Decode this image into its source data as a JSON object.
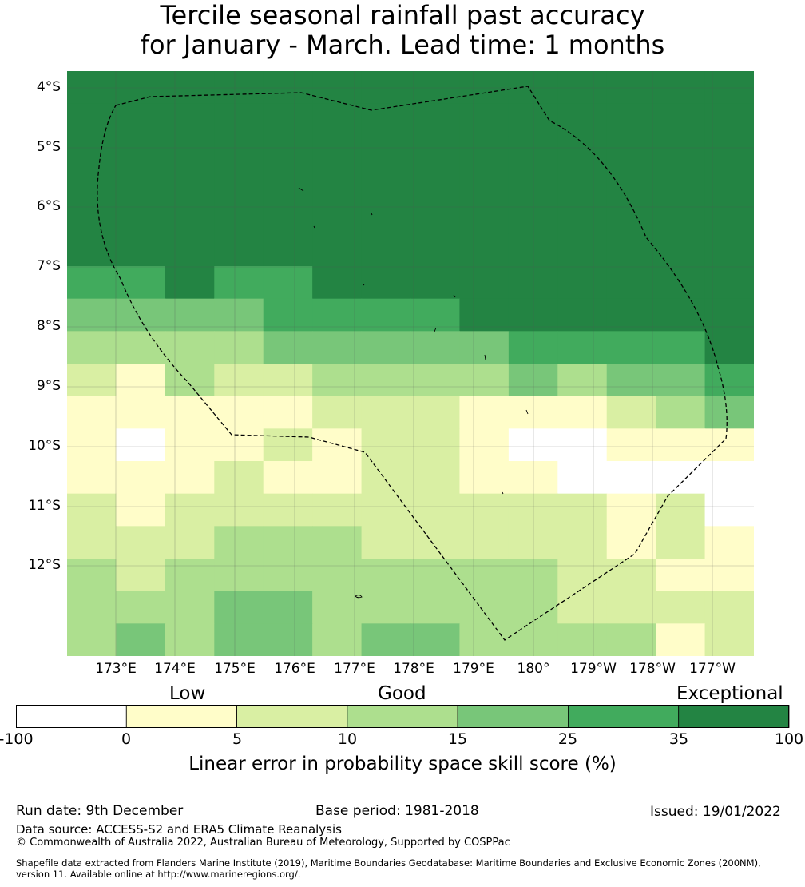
{
  "title": {
    "line1": "Tercile seasonal rainfall past accuracy",
    "line2": "for January - March. Lead time: 1 months"
  },
  "map": {
    "lat_labels": [
      "4°S",
      "5°S",
      "6°S",
      "7°S",
      "8°S",
      "9°S",
      "10°S",
      "11°S",
      "12°S"
    ],
    "lon_labels": [
      "173°E",
      "174°E",
      "175°E",
      "176°E",
      "177°E",
      "178°E",
      "179°E",
      "180°",
      "179°W",
      "178°W",
      "177°W"
    ],
    "grid": [
      [
        6,
        6,
        6,
        6,
        6,
        6,
        6,
        6,
        6,
        6,
        6,
        6,
        6,
        6
      ],
      [
        6,
        6,
        6,
        6,
        6,
        6,
        6,
        6,
        6,
        6,
        6,
        6,
        6,
        6
      ],
      [
        6,
        6,
        6,
        6,
        6,
        6,
        6,
        6,
        6,
        6,
        6,
        6,
        6,
        6
      ],
      [
        6,
        6,
        6,
        6,
        6,
        6,
        6,
        6,
        6,
        6,
        6,
        6,
        6,
        6
      ],
      [
        6,
        6,
        6,
        6,
        6,
        6,
        6,
        6,
        6,
        6,
        6,
        6,
        6,
        6
      ],
      [
        6,
        6,
        6,
        6,
        6,
        6,
        6,
        6,
        6,
        6,
        6,
        6,
        6,
        6
      ],
      [
        5,
        5,
        6,
        5,
        5,
        6,
        6,
        6,
        6,
        6,
        6,
        6,
        6,
        6
      ],
      [
        4,
        4,
        4,
        4,
        5,
        5,
        5,
        5,
        6,
        6,
        6,
        6,
        6,
        6
      ],
      [
        3,
        3,
        3,
        3,
        4,
        4,
        4,
        4,
        4,
        5,
        5,
        5,
        5,
        6
      ],
      [
        2,
        1,
        3,
        2,
        2,
        3,
        3,
        3,
        3,
        4,
        3,
        4,
        4,
        5
      ],
      [
        1,
        1,
        1,
        1,
        1,
        2,
        2,
        2,
        1,
        1,
        1,
        2,
        3,
        4
      ],
      [
        1,
        0,
        1,
        1,
        2,
        1,
        2,
        2,
        1,
        0,
        0,
        1,
        1,
        1
      ],
      [
        1,
        1,
        1,
        2,
        1,
        1,
        2,
        2,
        1,
        1,
        0,
        0,
        0,
        0
      ],
      [
        2,
        1,
        2,
        2,
        2,
        2,
        2,
        2,
        2,
        2,
        2,
        1,
        2,
        0
      ],
      [
        2,
        2,
        2,
        3,
        3,
        3,
        2,
        2,
        2,
        2,
        2,
        1,
        2,
        1
      ],
      [
        3,
        2,
        3,
        3,
        3,
        3,
        3,
        3,
        3,
        3,
        2,
        2,
        1,
        1
      ],
      [
        3,
        3,
        3,
        4,
        4,
        3,
        3,
        3,
        3,
        3,
        2,
        2,
        2,
        2
      ],
      [
        3,
        4,
        3,
        4,
        4,
        3,
        4,
        4,
        3,
        3,
        3,
        3,
        1,
        2
      ]
    ],
    "palette": [
      "#ffffff",
      "#fffdc9",
      "#d9efa3",
      "#addf8e",
      "#78c679",
      "#41ab5d",
      "#238443"
    ],
    "grid_color": "#555555",
    "boundary_color": "#000000"
  },
  "colorbar": {
    "categories": [
      "Low",
      "Good",
      "Exceptional"
    ],
    "ticks": [
      "-100",
      "0",
      "5",
      "10",
      "15",
      "25",
      "35",
      "100"
    ],
    "label": "Linear error in probability space skill score (%)"
  },
  "footer": {
    "run_date": "Run date: 9th December",
    "base_period": "Base period: 1981-2018",
    "issued": "Issued: 19/01/2022",
    "data_source": "Data source: ACCESS-S2 and ERA5 Climate Reanalysis",
    "copyright": "© Commonwealth of Australia 2022, Australian Bureau of Meteorology, Supported by COSPPac",
    "shapefile_line1": "Shapefile data extracted from Flanders Marine Institute (2019), Maritime Boundaries Geodatabase: Maritime Boundaries and Exclusive Economic Zones (200NM),",
    "shapefile_line2": "version 11. Available online at http://www.marineregions.org/."
  }
}
